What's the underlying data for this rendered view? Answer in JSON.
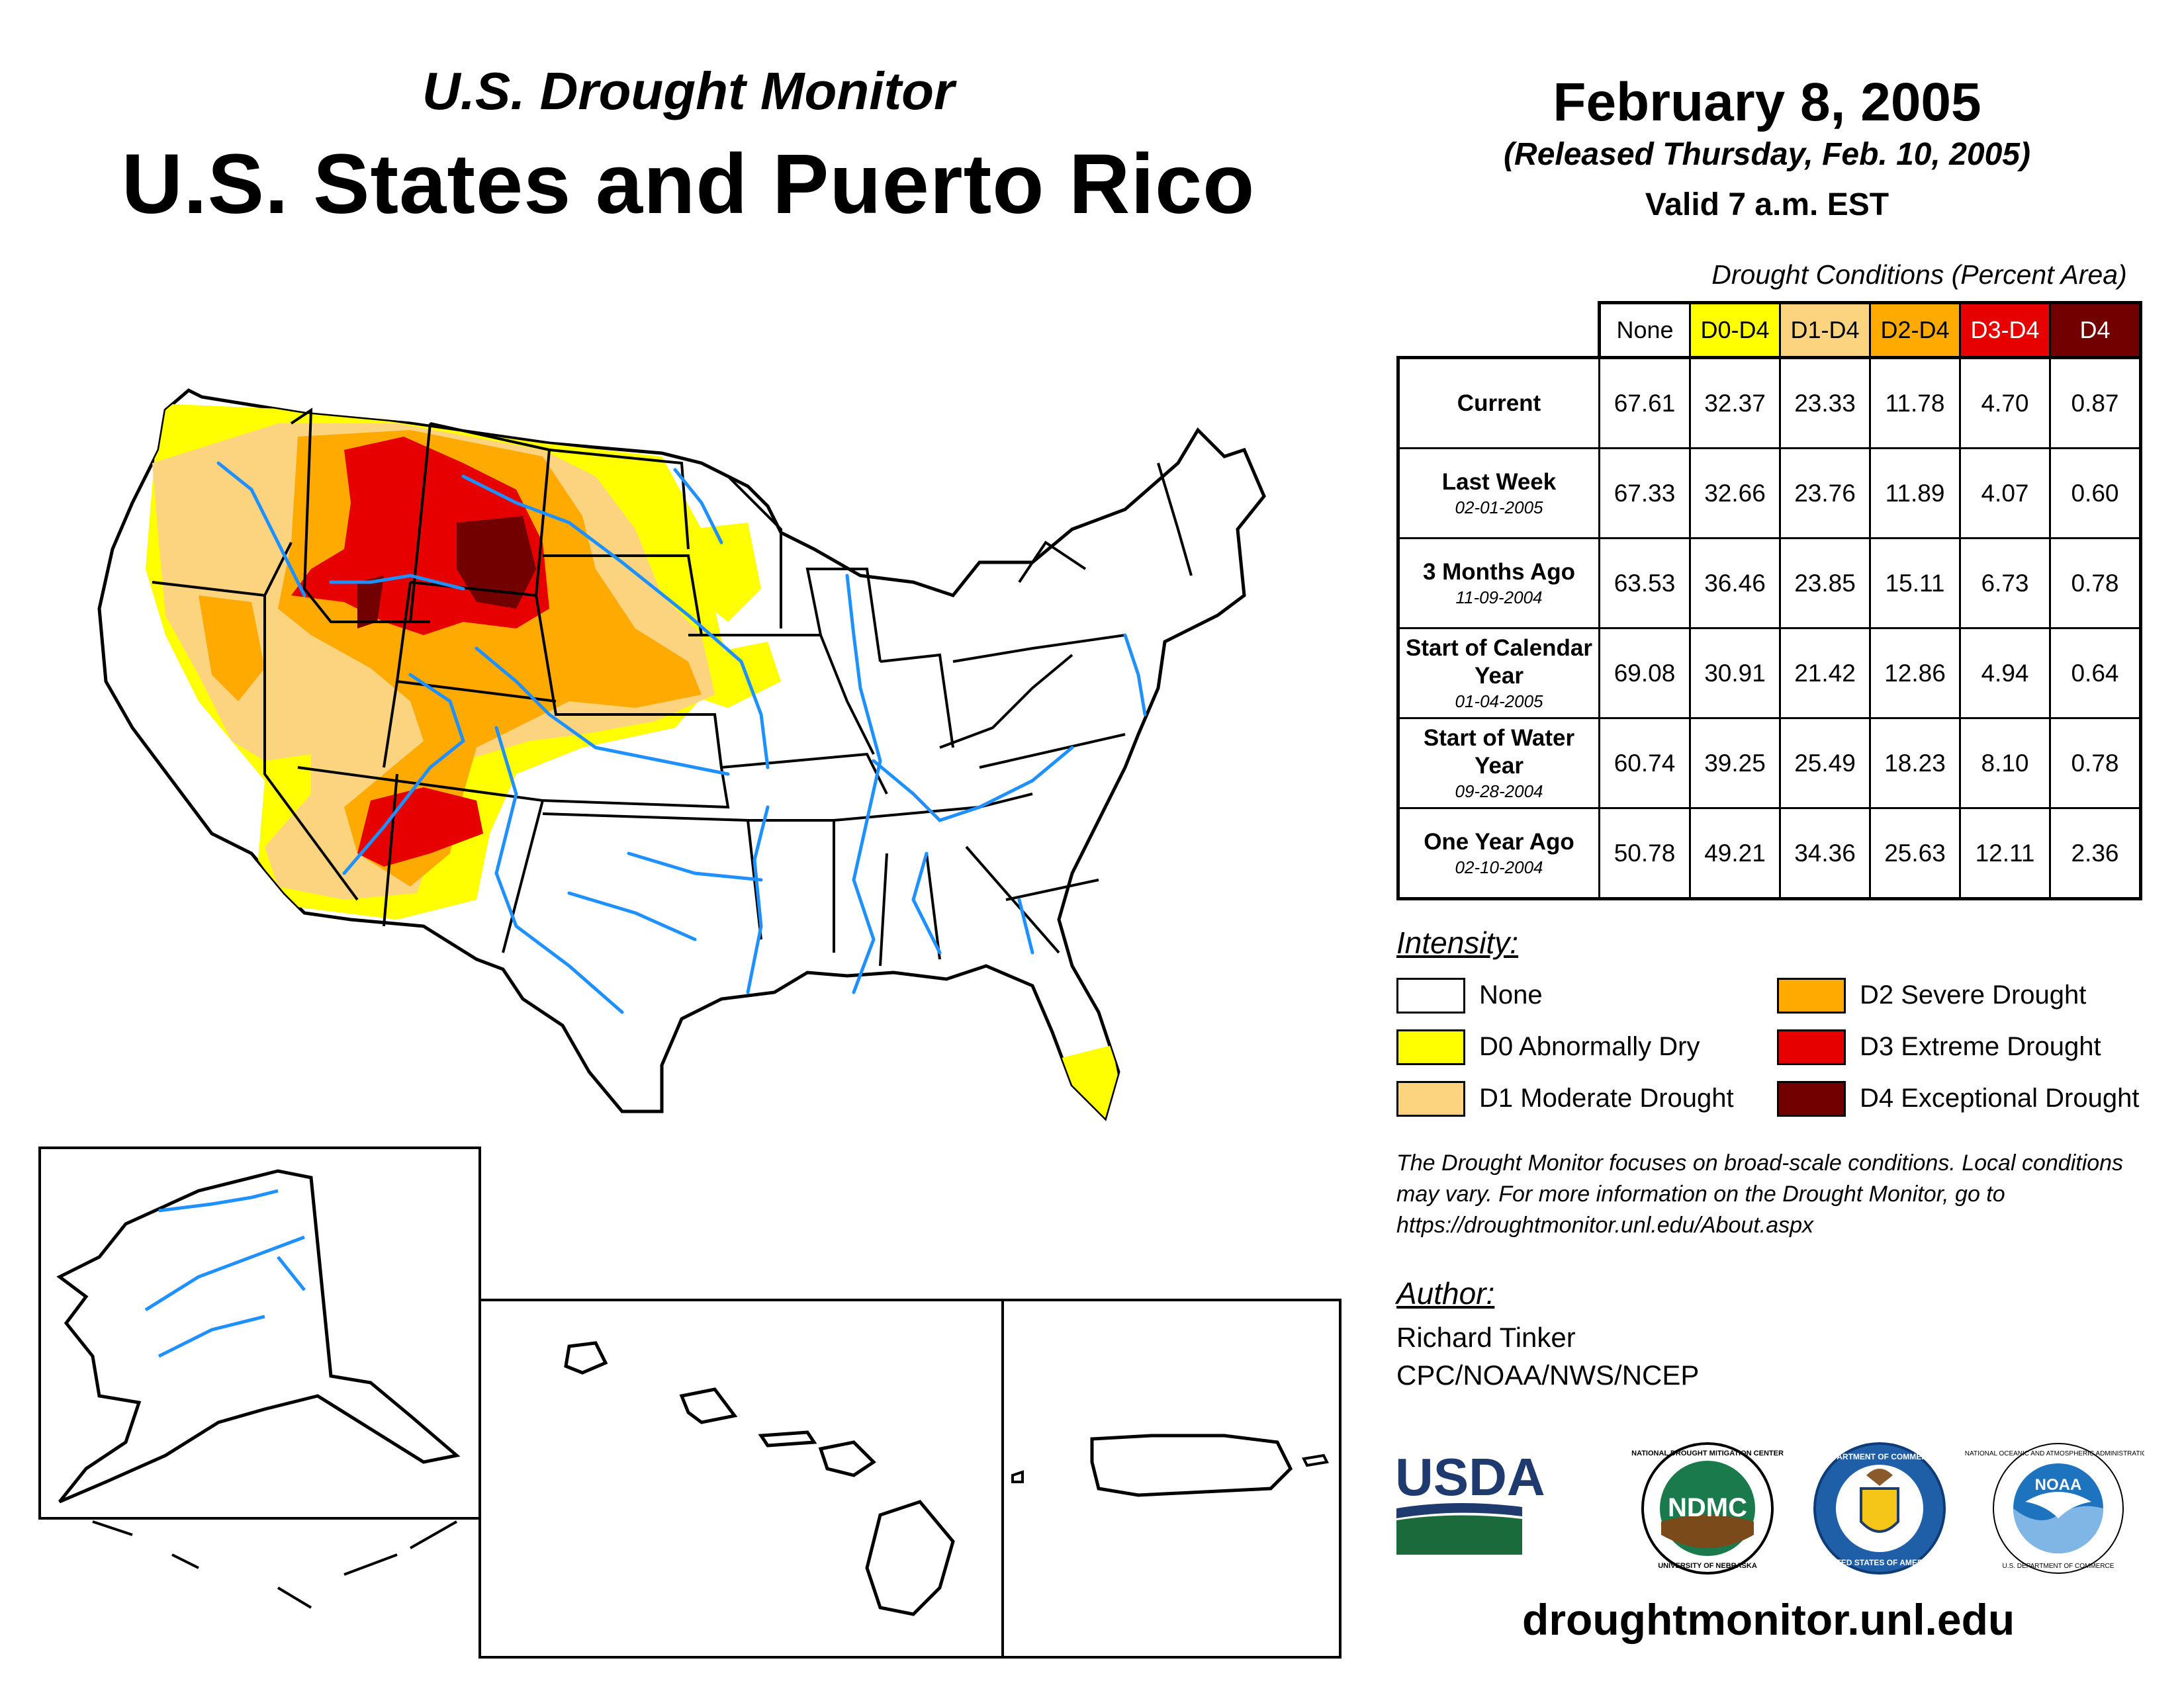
{
  "header": {
    "supertitle": "U.S. Drought Monitor",
    "title": "U.S. States and Puerto Rico",
    "date": "February 8, 2005",
    "released": "(Released Thursday, Feb. 10, 2005)",
    "valid": "Valid 7 a.m. EST"
  },
  "table": {
    "caption": "Drought Conditions (Percent Area)",
    "columns": [
      "None",
      "D0-D4",
      "D1-D4",
      "D2-D4",
      "D3-D4",
      "D4"
    ],
    "column_colors": [
      "#ffffff",
      "#ffff00",
      "#fcd37f",
      "#ffaa00",
      "#e60000",
      "#730000"
    ],
    "rows": [
      {
        "label": "Current",
        "date": "",
        "values": [
          "67.61",
          "32.37",
          "23.33",
          "11.78",
          "4.70",
          "0.87"
        ]
      },
      {
        "label": "Last Week",
        "date": "02-01-2005",
        "values": [
          "67.33",
          "32.66",
          "23.76",
          "11.89",
          "4.07",
          "0.60"
        ]
      },
      {
        "label": "3 Months Ago",
        "date": "11-09-2004",
        "values": [
          "63.53",
          "36.46",
          "23.85",
          "15.11",
          "6.73",
          "0.78"
        ]
      },
      {
        "label": "Start of Calendar Year",
        "date": "01-04-2005",
        "values": [
          "69.08",
          "30.91",
          "21.42",
          "12.86",
          "4.94",
          "0.64"
        ]
      },
      {
        "label": "Start of Water Year",
        "date": "09-28-2004",
        "values": [
          "60.74",
          "39.25",
          "25.49",
          "18.23",
          "8.10",
          "0.78"
        ]
      },
      {
        "label": "One Year Ago",
        "date": "02-10-2004",
        "values": [
          "50.78",
          "49.21",
          "34.36",
          "25.63",
          "12.11",
          "2.36"
        ]
      }
    ]
  },
  "legend": {
    "title": "Intensity:",
    "items": [
      {
        "label": "None",
        "color": "#ffffff"
      },
      {
        "label": "D0 Abnormally Dry",
        "color": "#ffff00"
      },
      {
        "label": "D1 Moderate Drought",
        "color": "#fcd37f"
      },
      {
        "label": "D2 Severe Drought",
        "color": "#ffaa00"
      },
      {
        "label": "D3 Extreme Drought",
        "color": "#e60000"
      },
      {
        "label": "D4 Exceptional Drought",
        "color": "#730000"
      }
    ]
  },
  "note": "The Drought Monitor focuses on broad-scale conditions. Local conditions may vary. For more information on the Drought Monitor, go to https://droughtmonitor.unl.edu/About.aspx",
  "author": {
    "title": "Author:",
    "name": "Richard Tinker",
    "org": "CPC/NOAA/NWS/NCEP"
  },
  "logos": {
    "usda": "USDA",
    "ndmc": "NDMC",
    "ndmc_ring_top": "NATIONAL DROUGHT MITIGATION CENTER",
    "ndmc_ring_bottom": "UNIVERSITY OF NEBRASKA",
    "commerce_ring": "DEPARTMENT OF COMMERCE",
    "commerce_ring_bottom": "UNITED STATES OF AMERICA",
    "noaa": "NOAA",
    "noaa_ring": "NATIONAL OCEANIC AND ATMOSPHERIC ADMINISTRATION",
    "noaa_ring_bottom": "U.S. DEPARTMENT OF COMMERCE"
  },
  "website": "droughtmonitor.unl.edu",
  "map_colors": {
    "water": "#1e90ff",
    "border": "#000000"
  }
}
